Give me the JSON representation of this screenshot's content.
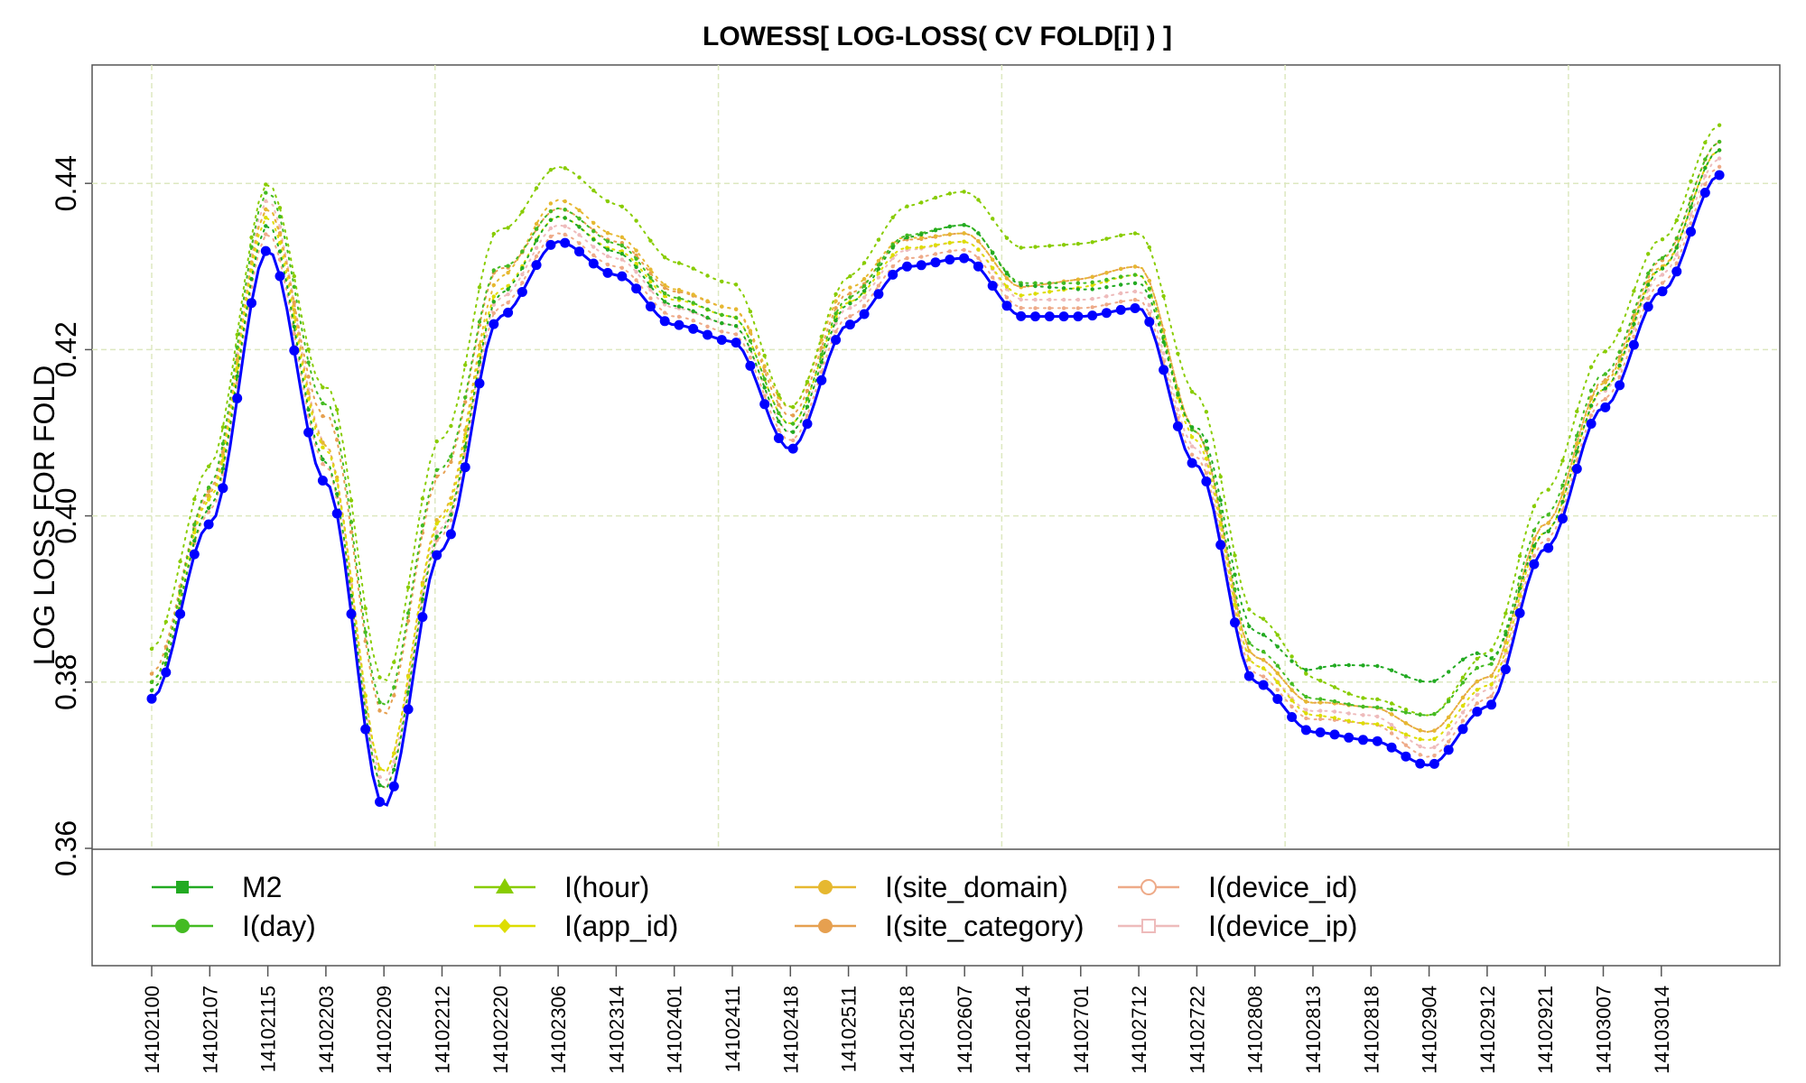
{
  "chart_data": {
    "type": "line",
    "title": "LOWESS[ LOG-LOSS( CV FOLD[i] ) ]",
    "xlabel": "",
    "ylabel": "LOG LOSS FOR FOLD",
    "ylim": [
      0.36,
      0.45
    ],
    "y_ticks": [
      "0.36",
      "0.38",
      "0.40",
      "0.42",
      "0.44"
    ],
    "grid": true,
    "legend_position": "bottom",
    "x_ticks": [
      "14102100",
      "14102107",
      "14102115",
      "14102203",
      "14102209",
      "14102212",
      "14102220",
      "14102306",
      "14102314",
      "14102401",
      "14102411",
      "14102418",
      "14102511",
      "14102518",
      "14102607",
      "14102614",
      "14102701",
      "14102712",
      "14102722",
      "14102808",
      "14102813",
      "14102818",
      "14102904",
      "14102912",
      "14102921",
      "14103007",
      "14103014"
    ],
    "base_curve": {
      "color": "#0000ff",
      "points": [
        [
          0,
          0.378
        ],
        [
          1,
          0.399
        ],
        [
          2,
          0.432
        ],
        [
          3,
          0.404
        ],
        [
          4,
          0.365
        ],
        [
          5,
          0.396
        ],
        [
          6,
          0.424
        ],
        [
          7,
          0.433
        ],
        [
          8,
          0.429
        ],
        [
          9,
          0.423
        ],
        [
          10,
          0.421
        ],
        [
          11,
          0.408
        ],
        [
          12,
          0.423
        ],
        [
          13,
          0.43
        ],
        [
          14,
          0.431
        ],
        [
          15,
          0.424
        ],
        [
          16,
          0.424
        ],
        [
          17,
          0.425
        ],
        [
          18,
          0.406
        ],
        [
          19,
          0.38
        ],
        [
          20,
          0.374
        ],
        [
          21,
          0.373
        ],
        [
          22,
          0.37
        ],
        [
          23,
          0.377
        ],
        [
          24,
          0.396
        ],
        [
          25,
          0.413
        ],
        [
          26,
          0.427
        ],
        [
          27,
          0.441
        ]
      ]
    },
    "series": [
      {
        "name": "M2",
        "color": "#22aa22",
        "marker": "square-filled",
        "offsets": [
          [
            0,
            0.001
          ],
          [
            2,
            0.003
          ],
          [
            4,
            0.002
          ],
          [
            7,
            0.003
          ],
          [
            10,
            0.002
          ],
          [
            11,
            0.002
          ],
          [
            14,
            0.004
          ],
          [
            17,
            0.003
          ],
          [
            19,
            0.006
          ],
          [
            21,
            0.009
          ],
          [
            22,
            0.01
          ],
          [
            24,
            0.002
          ],
          [
            27,
            0.003
          ]
        ]
      },
      {
        "name": "I(day)",
        "color": "#44bb22",
        "marker": "circle-filled",
        "offsets": [
          [
            0,
            0.002
          ],
          [
            2,
            0.007
          ],
          [
            4,
            0.012
          ],
          [
            7,
            0.004
          ],
          [
            10,
            0.003
          ],
          [
            11,
            0.003
          ],
          [
            14,
            0.004
          ],
          [
            17,
            0.004
          ],
          [
            19,
            0.004
          ],
          [
            21,
            0.004
          ],
          [
            22,
            0.006
          ],
          [
            24,
            0.004
          ],
          [
            27,
            0.004
          ]
        ]
      },
      {
        "name": "I(hour)",
        "color": "#88cc00",
        "marker": "triangle-filled",
        "offsets": [
          [
            0,
            0.006
          ],
          [
            2,
            0.008
          ],
          [
            4,
            0.015
          ],
          [
            7,
            0.009
          ],
          [
            10,
            0.007
          ],
          [
            11,
            0.005
          ],
          [
            14,
            0.008
          ],
          [
            17,
            0.009
          ],
          [
            19,
            0.008
          ],
          [
            21,
            0.005
          ],
          [
            22,
            0.006
          ],
          [
            24,
            0.007
          ],
          [
            27,
            0.006
          ]
        ]
      },
      {
        "name": "I(app_id)",
        "color": "#dddd00",
        "marker": "diamond-filled",
        "offsets": [
          [
            0,
            0.002
          ],
          [
            2,
            0.004
          ],
          [
            4,
            0.004
          ],
          [
            7,
            0.003
          ],
          [
            10,
            0.003
          ],
          [
            11,
            0.003
          ],
          [
            14,
            0.002
          ],
          [
            17,
            0.004
          ],
          [
            19,
            0.002
          ],
          [
            21,
            0.002
          ],
          [
            22,
            0.003
          ],
          [
            24,
            0.002
          ],
          [
            27,
            0.003
          ]
        ]
      },
      {
        "name": "I(site_domain)",
        "color": "#e6b830",
        "marker": "circle-filled",
        "offsets": [
          [
            0,
            0.002
          ],
          [
            2,
            0.005
          ],
          [
            4,
            0.004
          ],
          [
            7,
            0.005
          ],
          [
            10,
            0.004
          ],
          [
            11,
            0.005
          ],
          [
            14,
            0.003
          ],
          [
            17,
            0.005
          ],
          [
            19,
            0.003
          ],
          [
            21,
            0.004
          ],
          [
            22,
            0.004
          ],
          [
            24,
            0.003
          ],
          [
            27,
            0.003
          ]
        ]
      },
      {
        "name": "I(site_category)",
        "color": "#e6a050",
        "marker": "circle-filled",
        "offsets": [
          [
            0,
            0.003
          ],
          [
            2,
            0.005
          ],
          [
            4,
            0.011
          ],
          [
            7,
            0.004
          ],
          [
            10,
            0.004
          ],
          [
            11,
            0.004
          ],
          [
            14,
            0.003
          ],
          [
            17,
            0.005
          ],
          [
            19,
            0.003
          ],
          [
            21,
            0.004
          ],
          [
            22,
            0.004
          ],
          [
            24,
            0.003
          ],
          [
            27,
            0.004
          ]
        ]
      },
      {
        "name": "I(device_id)",
        "color": "#eeaa88",
        "marker": "circle-open",
        "offsets": [
          [
            0,
            0.001
          ],
          [
            2,
            0.002
          ],
          [
            4,
            0.002
          ],
          [
            7,
            0.001
          ],
          [
            10,
            0.001
          ],
          [
            11,
            0.001
          ],
          [
            14,
            0.001
          ],
          [
            17,
            0.001
          ],
          [
            19,
            0.001
          ],
          [
            21,
            0.002
          ],
          [
            22,
            0.001
          ],
          [
            24,
            0.001
          ],
          [
            27,
            0.001
          ]
        ]
      },
      {
        "name": "I(device_ip)",
        "color": "#eebbbb",
        "marker": "square-open",
        "offsets": [
          [
            0,
            0.002
          ],
          [
            2,
            0.006
          ],
          [
            4,
            0.003
          ],
          [
            7,
            0.002
          ],
          [
            10,
            0.002
          ],
          [
            11,
            0.002
          ],
          [
            14,
            0.002
          ],
          [
            17,
            0.002
          ],
          [
            19,
            0.002
          ],
          [
            21,
            0.003
          ],
          [
            22,
            0.002
          ],
          [
            24,
            0.002
          ],
          [
            27,
            0.002
          ]
        ]
      }
    ]
  }
}
